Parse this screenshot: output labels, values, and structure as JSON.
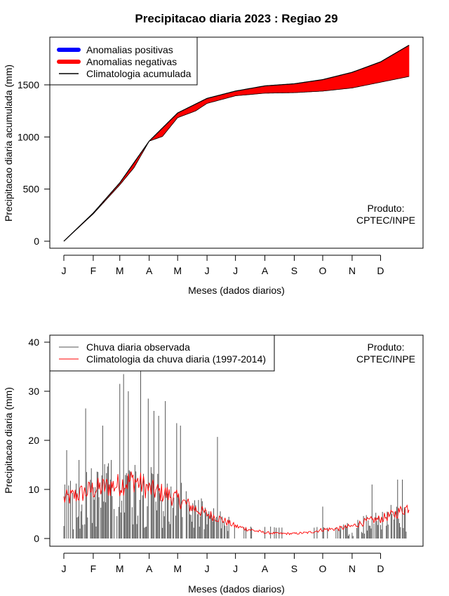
{
  "title": "Precipitacao diaria 2023 : Regiao 29",
  "months": [
    "J",
    "F",
    "M",
    "A",
    "M",
    "J",
    "J",
    "A",
    "S",
    "O",
    "N",
    "D"
  ],
  "month_start_days": [
    1,
    32,
    60,
    91,
    121,
    152,
    182,
    213,
    244,
    274,
    305,
    335
  ],
  "colors": {
    "positive": "#0000ff",
    "negative": "#ff0000",
    "climatology_cum": "#000000",
    "observed": "#555555",
    "climatology_daily": "#ff0000"
  },
  "chart_data": [
    {
      "type": "area",
      "name": "accumulated",
      "ylabel": "Precipitacao diaria acumulada (mm)",
      "xlabel": "Meses (dados diarios)",
      "xlim": [
        1,
        365
      ],
      "ylim": [
        0,
        1900
      ],
      "yticks": [
        0,
        500,
        1000,
        1500
      ],
      "legend": [
        "Anomalias positivas",
        "Anomalias negativas",
        "Climatologia acumulada"
      ],
      "legend_position": "top-left",
      "credit": [
        "Produto:",
        "CPTEC/INPE"
      ],
      "climatology_days": [
        1,
        32,
        60,
        91,
        121,
        152,
        182,
        213,
        244,
        274,
        305,
        335,
        365
      ],
      "climatology_values": [
        0,
        270,
        560,
        960,
        1230,
        1370,
        1440,
        1490,
        1510,
        1550,
        1620,
        1720,
        1880
      ],
      "observed_days": [
        1,
        32,
        60,
        75,
        91,
        105,
        121,
        140,
        152,
        182,
        213,
        244,
        274,
        305,
        335,
        365
      ],
      "observed_values": [
        0,
        262,
        540,
        705,
        960,
        1005,
        1185,
        1250,
        1322,
        1395,
        1420,
        1425,
        1440,
        1470,
        1525,
        1580
      ]
    },
    {
      "type": "bar",
      "name": "daily",
      "ylabel": "Precipitacao diaria (mm)",
      "xlabel": "Meses (dados diarios)",
      "xlim": [
        1,
        365
      ],
      "ylim": [
        0,
        42
      ],
      "yticks": [
        0,
        10,
        20,
        30,
        40
      ],
      "legend": [
        "Chuva diaria observada",
        "Climatologia da chuva diaria (1997-2014)"
      ],
      "legend_position": "top-left",
      "credit": [
        "Produto:",
        "CPTEC/INPE"
      ],
      "climatology_anchor_days": [
        1,
        32,
        60,
        75,
        91,
        110,
        121,
        140,
        152,
        166,
        182,
        197,
        213,
        228,
        244,
        259,
        274,
        290,
        305,
        320,
        335,
        350,
        365
      ],
      "climatology_anchor_values": [
        8,
        10,
        11,
        12,
        10,
        9,
        8,
        6,
        5,
        4,
        2.5,
        1.8,
        1.2,
        1.0,
        1.0,
        1.2,
        1.8,
        2.0,
        2.5,
        3.5,
        4.0,
        5.0,
        6.5
      ],
      "observed_peaks": [
        {
          "day": 2,
          "value": 11
        },
        {
          "day": 4,
          "value": 18
        },
        {
          "day": 17,
          "value": 16
        },
        {
          "day": 24,
          "value": 26.5
        },
        {
          "day": 42,
          "value": 23
        },
        {
          "day": 51,
          "value": 16
        },
        {
          "day": 60,
          "value": 31.5
        },
        {
          "day": 64,
          "value": 33.5
        },
        {
          "day": 69,
          "value": 30
        },
        {
          "day": 82,
          "value": 35
        },
        {
          "day": 90,
          "value": 28.5
        },
        {
          "day": 96,
          "value": 26
        },
        {
          "day": 101,
          "value": 25
        },
        {
          "day": 108,
          "value": 28
        },
        {
          "day": 120,
          "value": 23.5
        },
        {
          "day": 124,
          "value": 23
        },
        {
          "day": 163,
          "value": 20.7
        },
        {
          "day": 274,
          "value": 6.5
        },
        {
          "day": 326,
          "value": 11
        },
        {
          "day": 353,
          "value": 12
        },
        {
          "day": 358,
          "value": 12
        }
      ]
    }
  ]
}
